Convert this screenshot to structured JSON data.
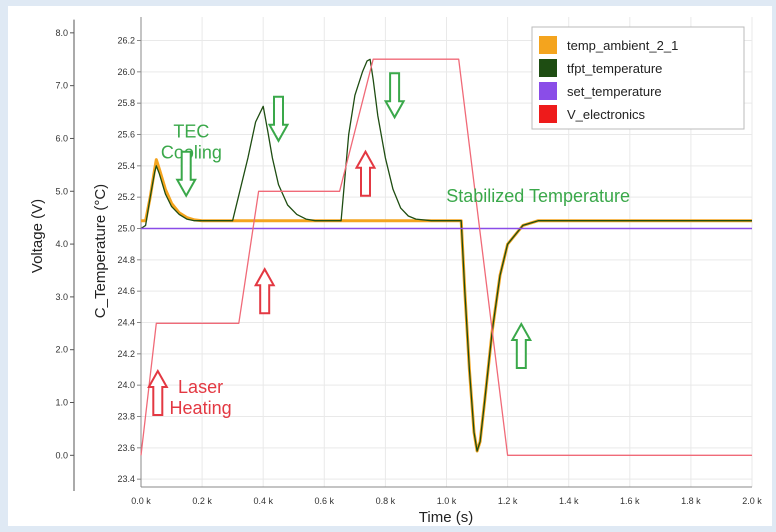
{
  "chart_data": {
    "type": "line",
    "xlabel": "Time (s)",
    "ylabel_left": "Voltage (V)",
    "ylabel_right": "C_Temperature (°C)",
    "x_ticks": [
      "0.0 k",
      "0.2 k",
      "0.4 k",
      "0.6 k",
      "0.8 k",
      "1.0 k",
      "1.2 k",
      "1.4 k",
      "1.6 k",
      "1.8 k",
      "2.0 k"
    ],
    "x_tick_values": [
      0,
      200,
      400,
      600,
      800,
      1000,
      1200,
      1400,
      1600,
      1800,
      2000
    ],
    "xlim": [
      0,
      2000
    ],
    "voltage_ticks": [
      "0.0",
      "1.0",
      "2.0",
      "3.0",
      "4.0",
      "5.0",
      "6.0",
      "7.0",
      "8.0"
    ],
    "voltage_tick_values": [
      0,
      1,
      2,
      3,
      4,
      5,
      6,
      7,
      8
    ],
    "voltage_lim": [
      -0.6,
      8.3
    ],
    "temp_ticks": [
      "23.4",
      "23.6",
      "23.8",
      "24.0",
      "24.2",
      "24.4",
      "24.6",
      "24.8",
      "25.0",
      "25.2",
      "25.4",
      "25.6",
      "25.8",
      "26.0",
      "26.2"
    ],
    "temp_tick_values": [
      23.4,
      23.6,
      23.8,
      24.0,
      24.2,
      24.4,
      24.6,
      24.8,
      25.0,
      25.2,
      25.4,
      25.6,
      25.8,
      26.0,
      26.2
    ],
    "temp_lim": [
      23.35,
      26.35
    ],
    "grid": true,
    "legend_position": "top-right",
    "series": [
      {
        "name": "temp_ambient_2_1",
        "color": "#f4a41e",
        "axis": "temperature",
        "x": [
          0,
          15,
          30,
          45,
          50,
          60,
          80,
          100,
          125,
          150,
          175,
          200,
          235,
          300,
          350,
          375,
          400,
          415,
          430,
          450,
          480,
          510,
          540,
          570,
          600,
          640,
          655,
          680,
          700,
          725,
          740,
          750,
          760,
          775,
          800,
          825,
          850,
          875,
          900,
          950,
          1000,
          1048,
          1060,
          1075,
          1090,
          1100,
          1110,
          1125,
          1150,
          1175,
          1200,
          1250,
          1300,
          1350,
          1400,
          1500,
          1600,
          1700,
          1800,
          2000
        ],
        "y": [
          25.05,
          25.05,
          25.2,
          25.38,
          25.44,
          25.38,
          25.25,
          25.16,
          25.1,
          25.07,
          25.055,
          25.05,
          25.05,
          25.05,
          25.05,
          25.05,
          25.05,
          25.05,
          25.05,
          25.05,
          25.05,
          25.05,
          25.05,
          25.05,
          25.05,
          25.05,
          25.05,
          25.05,
          25.05,
          25.05,
          25.05,
          25.05,
          25.05,
          25.05,
          25.05,
          25.05,
          25.05,
          25.05,
          25.05,
          25.05,
          25.05,
          25.05,
          24.6,
          24.1,
          23.7,
          23.58,
          23.64,
          23.9,
          24.35,
          24.7,
          24.9,
          25.02,
          25.05,
          25.05,
          25.05,
          25.05,
          25.05,
          25.05,
          25.05,
          25.05
        ]
      },
      {
        "name": "tfpt_temperature",
        "color": "#1e4d12",
        "axis": "temperature",
        "x": [
          0,
          15,
          30,
          45,
          50,
          60,
          80,
          100,
          125,
          150,
          175,
          200,
          235,
          300,
          350,
          375,
          400,
          415,
          430,
          450,
          480,
          510,
          540,
          570,
          600,
          640,
          655,
          680,
          700,
          725,
          740,
          750,
          760,
          775,
          800,
          825,
          850,
          875,
          900,
          950,
          1000,
          1048,
          1060,
          1075,
          1090,
          1100,
          1110,
          1125,
          1150,
          1175,
          1200,
          1250,
          1300,
          1350,
          1400,
          1500,
          1600,
          1700,
          1800,
          2000
        ],
        "y": [
          25.0,
          25.02,
          25.2,
          25.36,
          25.4,
          25.35,
          25.22,
          25.14,
          25.09,
          25.06,
          25.05,
          25.05,
          25.05,
          25.05,
          25.45,
          25.68,
          25.78,
          25.62,
          25.45,
          25.28,
          25.15,
          25.09,
          25.06,
          25.05,
          25.05,
          25.05,
          25.05,
          25.6,
          25.85,
          26.0,
          26.07,
          26.08,
          25.95,
          25.72,
          25.45,
          25.25,
          25.13,
          25.08,
          25.06,
          25.05,
          25.05,
          25.05,
          24.6,
          24.1,
          23.7,
          23.58,
          23.64,
          23.9,
          24.35,
          24.7,
          24.9,
          25.02,
          25.05,
          25.05,
          25.05,
          25.05,
          25.05,
          25.05,
          25.05,
          25.05
        ]
      },
      {
        "name": "set_temperature",
        "color": "#8a4de8",
        "axis": "temperature",
        "x": [
          0,
          2000
        ],
        "y": [
          25.0,
          25.0
        ]
      },
      {
        "name": "V_electronics",
        "color": "#f06a78",
        "axis": "voltage",
        "x": [
          0,
          50,
          320,
          385,
          650,
          760,
          1040,
          1200,
          2000
        ],
        "y": [
          0.0,
          2.5,
          2.5,
          5.0,
          5.0,
          7.5,
          7.5,
          0.0,
          0.0
        ]
      }
    ],
    "annotations": [
      {
        "id": "tec-cooling",
        "lines": [
          "TEC",
          "Cooling"
        ],
        "color": "#3aa84a",
        "x": 165,
        "t": 25.58
      },
      {
        "id": "laser-heating",
        "lines": [
          "Laser",
          "Heating"
        ],
        "color": "#e33842",
        "x": 195,
        "t": 23.95
      },
      {
        "id": "stabilized",
        "lines": [
          "Stabilized Temperature"
        ],
        "color": "#3aa84a",
        "x": 1300,
        "t": 25.17
      }
    ],
    "arrows": [
      {
        "direction": "down",
        "color": "#3aa84a",
        "x": 148,
        "t": 25.35
      },
      {
        "direction": "down",
        "color": "#3aa84a",
        "x": 450,
        "t": 25.7
      },
      {
        "direction": "down",
        "color": "#3aa84a",
        "x": 830,
        "t": 25.85
      },
      {
        "direction": "up",
        "color": "#3aa84a",
        "x": 1245,
        "t": 24.25
      },
      {
        "direction": "up",
        "color": "#e33842",
        "x": 55,
        "t": 23.95
      },
      {
        "direction": "up",
        "color": "#e33842",
        "x": 405,
        "t": 24.6
      },
      {
        "direction": "up",
        "color": "#e33842",
        "x": 735,
        "t": 25.35
      }
    ]
  }
}
